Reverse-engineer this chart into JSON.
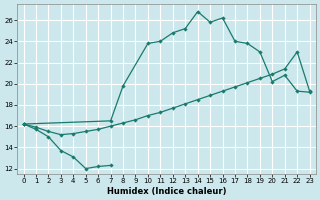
{
  "xlabel": "Humidex (Indice chaleur)",
  "bg_color": "#cce8ec",
  "grid_color": "#ffffff",
  "line_color": "#1a7a6e",
  "xlim": [
    -0.5,
    23.5
  ],
  "ylim": [
    11.5,
    27.5
  ],
  "xticks": [
    0,
    1,
    2,
    3,
    4,
    5,
    6,
    7,
    8,
    9,
    10,
    11,
    12,
    13,
    14,
    15,
    16,
    17,
    18,
    19,
    20,
    21,
    22,
    23
  ],
  "yticks": [
    12,
    14,
    16,
    18,
    20,
    22,
    24,
    26
  ],
  "line1_x": [
    0,
    1,
    2,
    3,
    4,
    5,
    6,
    7
  ],
  "line1_y": [
    16.2,
    15.7,
    15.0,
    13.7,
    13.1,
    12.0,
    12.2,
    12.3
  ],
  "line2_x": [
    0,
    1,
    2,
    3,
    4,
    5,
    6,
    7,
    8,
    9,
    10,
    11,
    12,
    13,
    14,
    15,
    16,
    17,
    18,
    19,
    20,
    21,
    22,
    23
  ],
  "line2_y": [
    16.2,
    15.9,
    15.5,
    15.2,
    15.3,
    15.5,
    15.7,
    16.0,
    16.3,
    16.6,
    17.0,
    17.3,
    17.7,
    18.1,
    18.5,
    18.9,
    19.3,
    19.7,
    20.1,
    20.5,
    20.9,
    21.4,
    23.0,
    19.3
  ],
  "line3_x": [
    0,
    7,
    8,
    10,
    11,
    12,
    13,
    14,
    15,
    16,
    17,
    18,
    19,
    20,
    21,
    22,
    23
  ],
  "line3_y": [
    16.2,
    16.5,
    19.8,
    23.8,
    24.0,
    24.8,
    25.2,
    26.8,
    25.8,
    26.2,
    24.0,
    23.8,
    23.0,
    20.2,
    20.8,
    19.3,
    19.2
  ]
}
